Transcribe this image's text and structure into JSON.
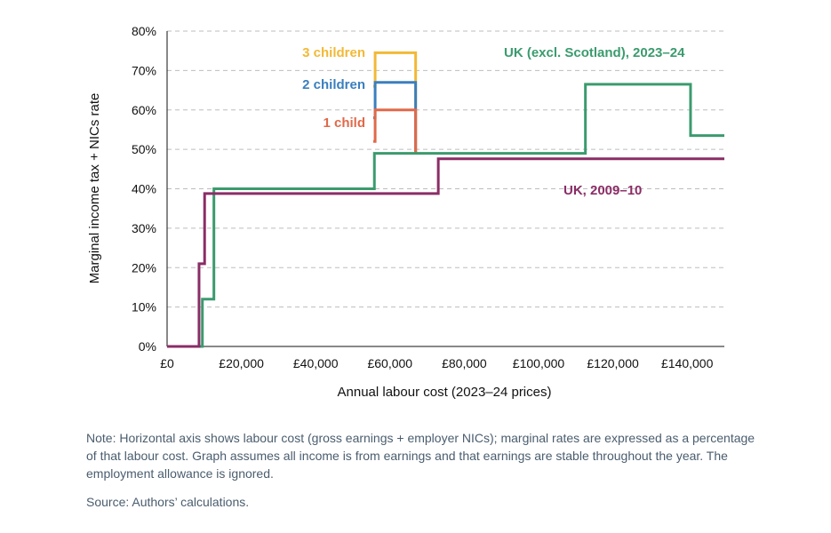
{
  "chart_data": {
    "type": "line",
    "title": "",
    "xlabel": "Annual labour cost (2023–24 prices)",
    "ylabel": "Marginal income tax + NICs rate",
    "xlim": [
      0,
      150000
    ],
    "ylim": [
      0,
      80
    ],
    "x_ticks": [
      0,
      20000,
      40000,
      60000,
      80000,
      100000,
      120000,
      140000
    ],
    "x_tick_labels": [
      "£0",
      "£20,000",
      "£40,000",
      "£60,000",
      "£80,000",
      "£100,000",
      "£120,000",
      "£140,000"
    ],
    "y_ticks": [
      0,
      10,
      20,
      30,
      40,
      50,
      60,
      70,
      80
    ],
    "y_tick_labels": [
      "0%",
      "10%",
      "20%",
      "30%",
      "40%",
      "50%",
      "60%",
      "70%",
      "80%"
    ],
    "grid": "horizontal dashed",
    "series": [
      {
        "name": "3 children",
        "color": "#f2b936",
        "step": true,
        "x": [
          55500,
          56000,
          66900,
          66900
        ],
        "y": [
          66,
          74.5,
          74.5,
          49
        ]
      },
      {
        "name": "2 children",
        "color": "#3a7fbe",
        "step": true,
        "x": [
          55500,
          56000,
          66900,
          66900
        ],
        "y": [
          58,
          67,
          67,
          49
        ]
      },
      {
        "name": "1 child",
        "color": "#e0694a",
        "step": true,
        "x": [
          55500,
          56000,
          66900,
          66900
        ],
        "y": [
          52,
          60,
          60,
          49
        ]
      },
      {
        "name": "UK (excl. Scotland), 2023–24",
        "color": "#3b9b6e",
        "step": true,
        "x": [
          0,
          9500,
          12600,
          55800,
          112600,
          140900,
          150000
        ],
        "y": [
          0,
          12,
          40,
          49,
          66.5,
          53.5,
          53.5
        ]
      },
      {
        "name": "UK, 2009–10",
        "color": "#8a2d66",
        "step": true,
        "x": [
          0,
          8600,
          10100,
          73000,
          150000
        ],
        "y": [
          0,
          21,
          38.8,
          47.6,
          47.6
        ]
      }
    ]
  },
  "labels": {
    "three_children": "3 children",
    "two_children": "2 children",
    "one_child": "1 child",
    "uk_2023": "UK (excl. Scotland), 2023–24",
    "uk_2009": "UK, 2009–10"
  },
  "note": "Note: Horizontal axis shows labour cost (gross earnings + employer NICs); marginal rates are expressed as a percentage of that labour cost. Graph assumes all income is from earnings and that earnings are stable throughout the year. The employment allowance is ignored.",
  "source": "Source: Authors’ calculations."
}
